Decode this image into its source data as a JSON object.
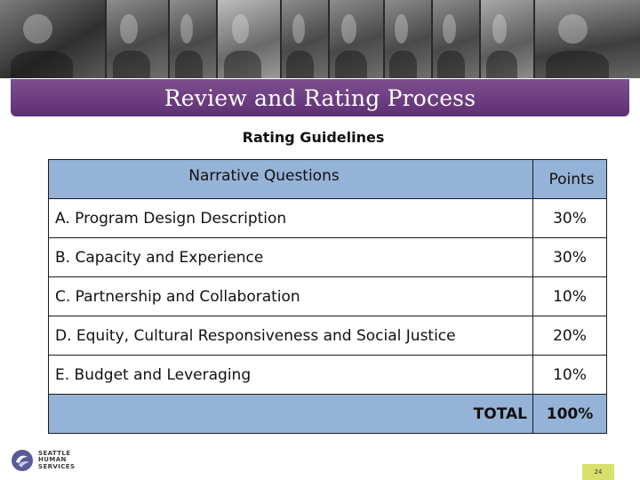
{
  "header": {
    "title": "Review and Rating Process"
  },
  "section": {
    "subtitle": "Rating Guidelines"
  },
  "table": {
    "headers": {
      "question": "Narrative Questions",
      "points": "Points"
    },
    "rows": [
      {
        "question": "A. Program Design Description",
        "points": "30%"
      },
      {
        "question": "B. Capacity and Experience",
        "points": "30%"
      },
      {
        "question": "C. Partnership and Collaboration",
        "points": "10%"
      },
      {
        "question": "D. Equity, Cultural Responsiveness and Social Justice",
        "points": "20%"
      },
      {
        "question": "E. Budget and Leveraging",
        "points": "10%"
      }
    ],
    "total": {
      "label": "TOTAL",
      "value": "100%"
    }
  },
  "footer": {
    "logo_lines": [
      "SEATTLE",
      "HUMAN",
      "SERVICES"
    ],
    "page_number": "24"
  },
  "colors": {
    "title_bar": "#6b3a80",
    "table_header": "#95b3d7",
    "page_badge": "#d7e06a"
  }
}
